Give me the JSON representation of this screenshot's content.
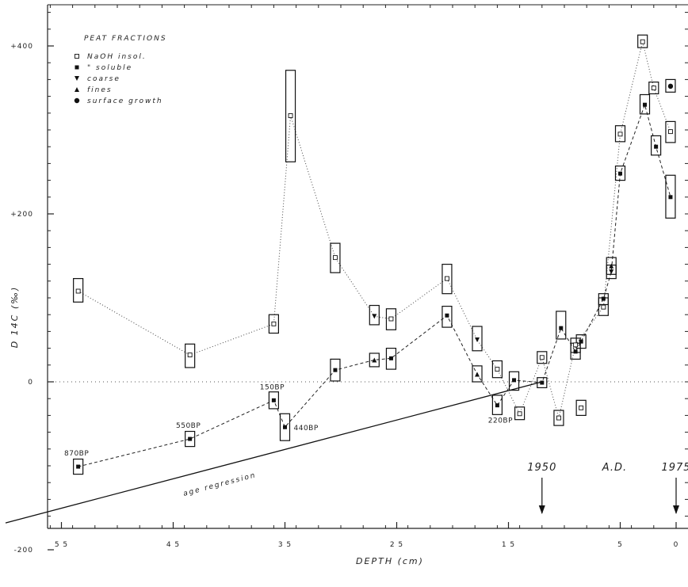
{
  "chart_data": {
    "type": "scatter",
    "title": "",
    "xlabel": "DEPTH (cm)",
    "ylabel": "D 14C (‰)",
    "xlim": [
      60,
      -2
    ],
    "ylim": [
      -200,
      450
    ],
    "x_ticks": [
      {
        "value": 55,
        "label": "5 5"
      },
      {
        "value": 45,
        "label": "4 5"
      },
      {
        "value": 35,
        "label": "3 5"
      },
      {
        "value": 25,
        "label": "2 5"
      },
      {
        "value": 15,
        "label": "1 5"
      },
      {
        "value": 5,
        "label": "5"
      },
      {
        "value": 0,
        "label": "0"
      }
    ],
    "y_ticks": [
      {
        "value": 400,
        "label": "+400"
      },
      {
        "value": 200,
        "label": "+200"
      },
      {
        "value": 0,
        "label": "0"
      },
      {
        "value": -200,
        "label": "-200"
      }
    ],
    "legend": {
      "title": "PEAT FRACTIONS",
      "position": "top-left",
      "entries": [
        {
          "symbol": "open-square",
          "label": "NaOH insol."
        },
        {
          "symbol": "filled-square",
          "label": "\" soluble"
        },
        {
          "symbol": "down-triangle",
          "label": "coarse"
        },
        {
          "symbol": "up-triangle",
          "label": "fines"
        },
        {
          "symbol": "circle",
          "label": "surface growth"
        }
      ]
    },
    "series": [
      {
        "name": "NaOH insol.",
        "symbol": "open-square",
        "line": "dotted",
        "points": [
          {
            "x": 53.5,
            "y": 108,
            "lo": 95,
            "hi": 123
          },
          {
            "x": 43.5,
            "y": 32,
            "lo": 17,
            "hi": 45
          },
          {
            "x": 36,
            "y": 69,
            "lo": 58,
            "hi": 80
          },
          {
            "x": 34.5,
            "y": 317,
            "lo": 262,
            "hi": 371
          },
          {
            "x": 30.5,
            "y": 148,
            "lo": 130,
            "hi": 165
          },
          {
            "x": 25.5,
            "y": 75,
            "lo": 62,
            "hi": 87
          },
          {
            "x": 20.5,
            "y": 123,
            "lo": 105,
            "hi": 140
          },
          {
            "x": 16,
            "y": 15,
            "lo": 5,
            "hi": 25
          },
          {
            "x": 14,
            "y": -38,
            "lo": -45,
            "hi": -30
          },
          {
            "x": 12,
            "y": 29,
            "lo": 22,
            "hi": 36
          },
          {
            "x": 10.5,
            "y": -43,
            "lo": -52,
            "hi": -34
          },
          {
            "x": 9,
            "y": 44,
            "lo": 35,
            "hi": 52
          },
          {
            "x": 8.5,
            "y": -31,
            "lo": -40,
            "hi": -22
          },
          {
            "x": 6.5,
            "y": 89,
            "lo": 79,
            "hi": 100
          },
          {
            "x": 5,
            "y": 295,
            "lo": 286,
            "hi": 305
          },
          {
            "x": 3,
            "y": 405,
            "lo": 398,
            "hi": 413
          },
          {
            "x": 2,
            "y": 350,
            "lo": 343,
            "hi": 357
          },
          {
            "x": 0.5,
            "y": 298,
            "lo": 285,
            "hi": 310
          }
        ]
      },
      {
        "name": "\" soluble",
        "symbol": "filled-square",
        "line": "dashed",
        "points": [
          {
            "x": 53.5,
            "y": -101,
            "lo": -110,
            "hi": -92
          },
          {
            "x": 43.5,
            "y": -68,
            "lo": -77,
            "hi": -59
          },
          {
            "x": 36,
            "y": -22,
            "lo": -32,
            "hi": -12
          },
          {
            "x": 35,
            "y": -54,
            "lo": -70,
            "hi": -38
          },
          {
            "x": 30.5,
            "y": 14,
            "lo": 1,
            "hi": 27
          },
          {
            "x": 25.5,
            "y": 28,
            "lo": 15,
            "hi": 40
          },
          {
            "x": 20.5,
            "y": 79,
            "lo": 65,
            "hi": 90
          },
          {
            "x": 16,
            "y": -28,
            "lo": -39,
            "hi": -16
          },
          {
            "x": 14.5,
            "y": 2,
            "lo": -10,
            "hi": 12
          },
          {
            "x": 12,
            "y": -1,
            "lo": -7,
            "hi": 5
          },
          {
            "x": 10.3,
            "y": 64,
            "lo": 51,
            "hi": 84
          },
          {
            "x": 9,
            "y": 36,
            "lo": 27,
            "hi": 46
          },
          {
            "x": 8.5,
            "y": 48,
            "lo": 40,
            "hi": 56
          },
          {
            "x": 6.5,
            "y": 99,
            "lo": 92,
            "hi": 105
          },
          {
            "x": 5,
            "y": 248,
            "lo": 240,
            "hi": 257
          },
          {
            "x": 2.8,
            "y": 330,
            "lo": 319,
            "hi": 342
          },
          {
            "x": 1.8,
            "y": 280,
            "lo": 270,
            "hi": 293
          },
          {
            "x": 0.5,
            "y": 220,
            "lo": 195,
            "hi": 246
          }
        ]
      },
      {
        "name": "coarse",
        "symbol": "down-triangle",
        "line": "none",
        "points": [
          {
            "x": 27,
            "y": 78,
            "lo": 68,
            "hi": 91
          },
          {
            "x": 17.8,
            "y": 50,
            "lo": 37,
            "hi": 66
          },
          {
            "x": 5.8,
            "y": 131,
            "lo": 123,
            "hi": 139
          }
        ]
      },
      {
        "name": "fines",
        "symbol": "up-triangle",
        "line": "none",
        "points": [
          {
            "x": 27,
            "y": 26,
            "lo": 18,
            "hi": 34
          },
          {
            "x": 17.8,
            "y": 9,
            "lo": 0,
            "hi": 19
          },
          {
            "x": 5.8,
            "y": 138,
            "lo": 128,
            "hi": 148
          }
        ]
      },
      {
        "name": "surface growth",
        "symbol": "circle",
        "line": "none",
        "points": [
          {
            "x": 0.5,
            "y": 352,
            "lo": 345,
            "hi": 360
          }
        ]
      }
    ],
    "dashed_path": [
      {
        "x": 53.5,
        "y": -101
      },
      {
        "x": 43.5,
        "y": -68
      },
      {
        "x": 36,
        "y": -22
      },
      {
        "x": 35,
        "y": -54
      },
      {
        "x": 30.5,
        "y": 14
      },
      {
        "x": 27,
        "y": 26
      },
      {
        "x": 25.5,
        "y": 28
      },
      {
        "x": 20.5,
        "y": 79
      },
      {
        "x": 17.8,
        "y": 9
      },
      {
        "x": 16,
        "y": -28
      },
      {
        "x": 14.5,
        "y": 2
      },
      {
        "x": 12,
        "y": -1
      },
      {
        "x": 10.3,
        "y": 64
      },
      {
        "x": 9,
        "y": 36
      },
      {
        "x": 8.5,
        "y": 48
      },
      {
        "x": 6.5,
        "y": 99
      },
      {
        "x": 5.8,
        "y": 131
      },
      {
        "x": 5,
        "y": 248
      },
      {
        "x": 2.8,
        "y": 330
      },
      {
        "x": 1.8,
        "y": 280
      },
      {
        "x": 0.5,
        "y": 220
      }
    ],
    "dotted_path": [
      {
        "x": 53.5,
        "y": 108
      },
      {
        "x": 43.5,
        "y": 32
      },
      {
        "x": 36,
        "y": 69
      },
      {
        "x": 34.5,
        "y": 317
      },
      {
        "x": 30.5,
        "y": 148
      },
      {
        "x": 27,
        "y": 78
      },
      {
        "x": 25.5,
        "y": 75
      },
      {
        "x": 20.5,
        "y": 123
      },
      {
        "x": 17.8,
        "y": 50
      },
      {
        "x": 16,
        "y": 15
      },
      {
        "x": 14,
        "y": -38
      },
      {
        "x": 12,
        "y": 29
      },
      {
        "x": 10.5,
        "y": -43
      },
      {
        "x": 9,
        "y": 44
      },
      {
        "x": 6.5,
        "y": 89
      },
      {
        "x": 5,
        "y": 295
      },
      {
        "x": 3,
        "y": 405
      },
      {
        "x": 2,
        "y": 350
      },
      {
        "x": 0.5,
        "y": 298
      }
    ],
    "regression_line": {
      "label": "age regression",
      "from": {
        "x": 60,
        "y": -168
      },
      "to": {
        "x": 12,
        "y": 0
      }
    },
    "zero_line": {
      "y": 0,
      "style": "dotted"
    },
    "annotations": [
      {
        "text": "870BP",
        "x": 53.5,
        "y": -101,
        "anchor": "above"
      },
      {
        "text": "550BP",
        "x": 43.5,
        "y": -68,
        "anchor": "above"
      },
      {
        "text": "150BP",
        "x": 36,
        "y": -22,
        "anchor": "above"
      },
      {
        "text": "440BP",
        "x": 35,
        "y": -54,
        "anchor": "right"
      },
      {
        "text": "220BP",
        "x": 16,
        "y": -28,
        "anchor": "below"
      }
    ],
    "date_markers": [
      {
        "text": "1950",
        "x": 12
      },
      {
        "text": "A.D.",
        "x": 5.5
      },
      {
        "text": "1975",
        "x": 0
      }
    ]
  }
}
